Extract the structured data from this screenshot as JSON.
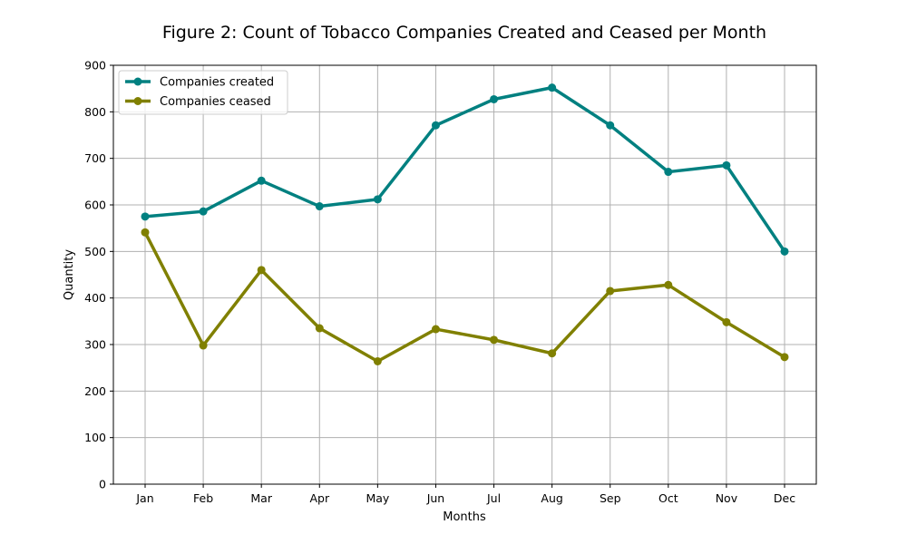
{
  "chart_data": {
    "type": "line",
    "title": "Figure 2: Count of Tobacco Companies Created and Ceased per Month",
    "xlabel": "Months",
    "ylabel": "Quantity",
    "categories": [
      "Jan",
      "Feb",
      "Mar",
      "Apr",
      "May",
      "Jun",
      "Jul",
      "Aug",
      "Sep",
      "Oct",
      "Nov",
      "Dec"
    ],
    "ylim": [
      0,
      900
    ],
    "yticks": [
      0,
      100,
      200,
      300,
      400,
      500,
      600,
      700,
      800,
      900
    ],
    "grid": true,
    "legend_position": "top-left",
    "series": [
      {
        "name": "Companies created",
        "color": "#008080",
        "values": [
          575,
          586,
          652,
          597,
          612,
          771,
          827,
          852,
          771,
          671,
          685,
          500
        ]
      },
      {
        "name": "Companies ceased",
        "color": "#808000",
        "values": [
          541,
          298,
          460,
          335,
          264,
          333,
          310,
          281,
          415,
          428,
          348,
          273
        ]
      }
    ]
  }
}
